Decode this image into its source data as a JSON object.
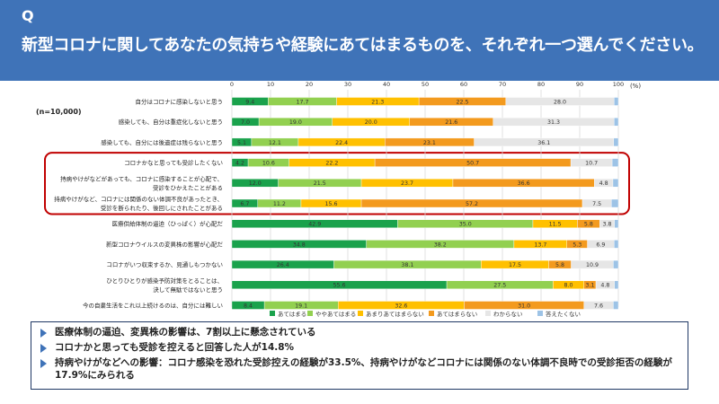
{
  "header": {
    "q_mark": "Q",
    "question": "新型コロナに関してあなたの気持ちや経験にあてはまるものを、それぞれ一つ選んでください。"
  },
  "sample": "(n=10,000)",
  "chart_data": {
    "type": "stacked-bar-horizontal",
    "x_unit": "(%)",
    "xlim": [
      0,
      100
    ],
    "x_ticks": [
      0,
      10,
      20,
      30,
      40,
      50,
      60,
      70,
      80,
      90,
      100
    ],
    "legend": [
      "あてはまる",
      "ややあてはまる",
      "あまりあてはまらない",
      "あてはまらない",
      "わからない",
      "答えたくない"
    ],
    "colors": [
      "#1aa24c",
      "#92d050",
      "#ffc000",
      "#f39a1e",
      "#e6e6e6",
      "#9dc3e6"
    ],
    "highlight_rows": [
      3,
      4,
      5
    ],
    "rows": [
      {
        "label": [
          "自分はコロナに感染しないと思う"
        ],
        "values": [
          9.4,
          17.7,
          21.3,
          22.5,
          28.0,
          1.1
        ]
      },
      {
        "label": [
          "感染しても、自分は重症化しないと思う"
        ],
        "values": [
          7.0,
          19.0,
          20.0,
          21.6,
          31.3,
          1.1
        ]
      },
      {
        "label": [
          "感染しても、自分には後遺症は残らないと思う"
        ],
        "values": [
          5.1,
          12.1,
          22.4,
          23.1,
          36.1,
          1.2
        ]
      },
      {
        "label": [
          "コロナかなと思っても受診したくない"
        ],
        "values": [
          4.2,
          10.6,
          22.2,
          50.7,
          10.7,
          1.6
        ]
      },
      {
        "label": [
          "持病やけがなどがあっても、コロナに感染することが心配で、",
          "受診をひかえたことがある"
        ],
        "values": [
          12.0,
          21.5,
          23.7,
          36.6,
          4.8,
          1.4
        ]
      },
      {
        "label": [
          "持病やけがなど、コロナには関係のない体調不良があったとき、",
          "受診を断られたり、後回しにされたことがある"
        ],
        "values": [
          6.7,
          11.2,
          15.6,
          57.2,
          7.5,
          1.8
        ]
      },
      {
        "label": [
          "医療供給体制の逼迫（ひっぱく）が心配だ"
        ],
        "values": [
          42.9,
          35.0,
          11.5,
          5.8,
          3.8,
          1.0
        ]
      },
      {
        "label": [
          "新型コロナウイルスの変異株の影響が心配だ"
        ],
        "values": [
          34.8,
          38.2,
          13.7,
          5.3,
          6.9,
          1.1
        ]
      },
      {
        "label": [
          "コロナがいつ収束するか、見通しもつかない"
        ],
        "values": [
          26.4,
          38.1,
          17.5,
          5.8,
          10.9,
          1.3
        ]
      },
      {
        "label": [
          "ひとりひとりが感染予防対策をとることは、",
          "決して無駄ではないと思う"
        ],
        "values": [
          55.6,
          27.5,
          8.0,
          3.1,
          4.8,
          1.0
        ]
      },
      {
        "label": [
          "今の自粛生活をこれ以上続けるのは、自分には難しい"
        ],
        "values": [
          8.4,
          19.1,
          32.6,
          31.0,
          7.6,
          1.3
        ]
      }
    ]
  },
  "findings": [
    "医療体制の逼迫、変異株の影響は、7割以上に懸念されている",
    "コロナかと思っても受診を控えると回答した人が14.8%",
    "持病やけがなどへの影響：コロナ感染を恐れた受診控えの経験が33.5%、持病やけがなどコロナには関係のない体調不良時での受診拒否の経験が17.9%にみられる"
  ]
}
